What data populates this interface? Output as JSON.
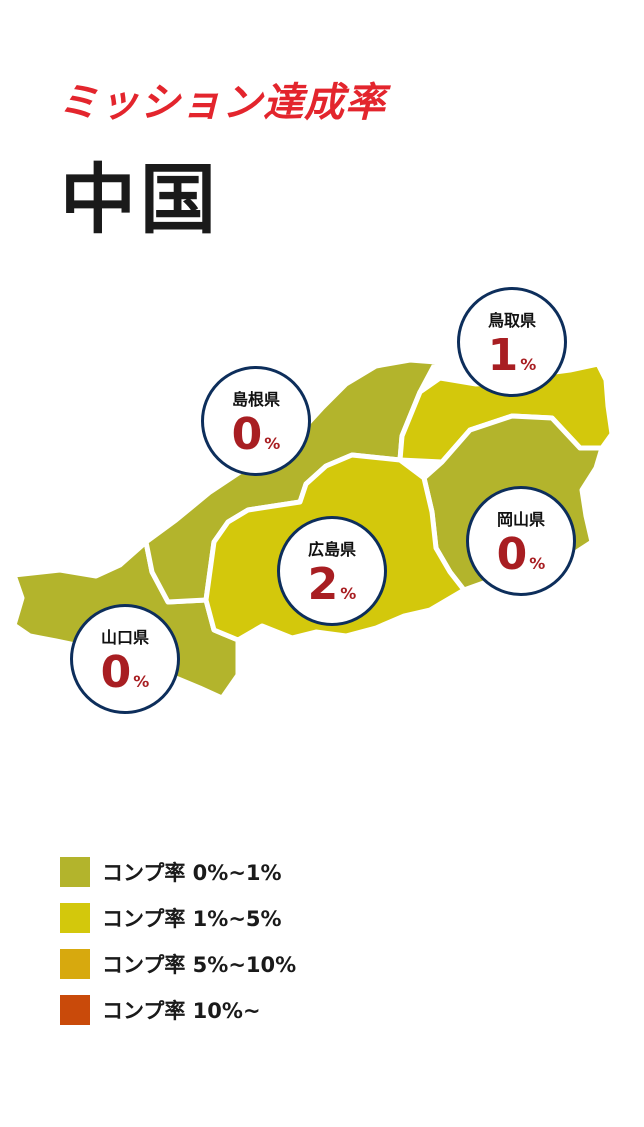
{
  "header": {
    "subtitle": "ミッション達成率",
    "title": "中国"
  },
  "colors": {
    "tier0": "#b3b42c",
    "tier1": "#d3c80c",
    "tier2": "#d7a90e",
    "tier3": "#c94a0a",
    "badge_border": "#0d2e5b",
    "value": "#a81e22"
  },
  "prefectures": [
    {
      "name": "鳥取県",
      "value": "1",
      "unit": "%"
    },
    {
      "name": "島根県",
      "value": "0",
      "unit": "%"
    },
    {
      "name": "広島県",
      "value": "2",
      "unit": "%"
    },
    {
      "name": "岡山県",
      "value": "0",
      "unit": "%"
    },
    {
      "name": "山口県",
      "value": "0",
      "unit": "%"
    }
  ],
  "legend": [
    {
      "label": "コンプ率 0%~1%",
      "color": "#b3b42c"
    },
    {
      "label": "コンプ率 1%~5%",
      "color": "#d3c80c"
    },
    {
      "label": "コンプ率 5%~10%",
      "color": "#d7a90e"
    },
    {
      "label": "コンプ率 10%~",
      "color": "#c94a0a"
    }
  ]
}
